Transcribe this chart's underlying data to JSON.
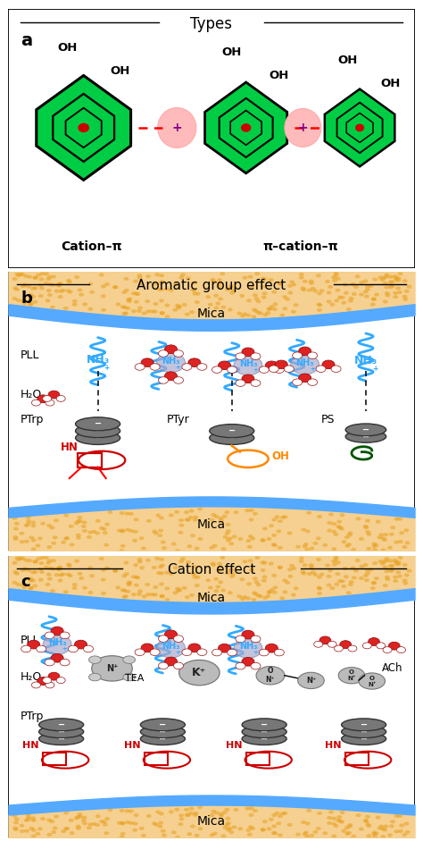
{
  "title_a": "Types",
  "label_a1": "Cation–π",
  "label_a2": "π–cation–π",
  "title_b": "Aromatic group effect",
  "title_c": "Cation effect",
  "panel_a_label": "a",
  "panel_b_label": "b",
  "panel_c_label": "c",
  "bg_color": "#ffffff",
  "mica_dot_color": "#e8a020",
  "mica_bg_color": "#f5d090",
  "blue_stripe": "#55aaff",
  "green_fill": "#00cc44",
  "red_color": "#cc0000",
  "orange_color": "#ff8800",
  "dark_green": "#005500",
  "gray_dark": "#666666",
  "gray_light": "#aaaaaa",
  "pink_cation": "#ffb0b0",
  "purple_plus": "#880088",
  "black": "#000000",
  "cyan_nh3": "#33aaff"
}
